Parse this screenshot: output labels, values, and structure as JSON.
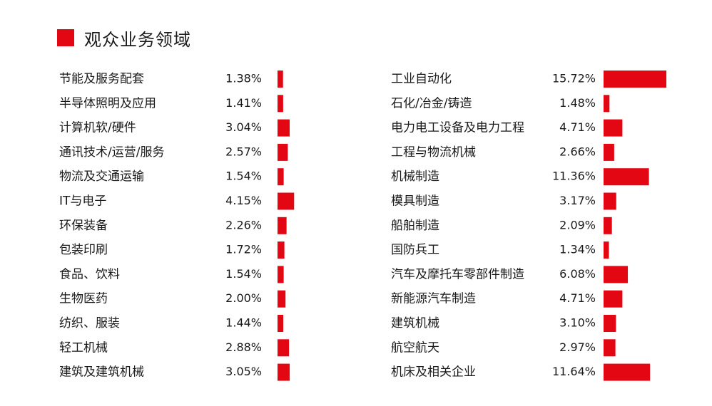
{
  "title": "观众业务领域",
  "colors": {
    "accent": "#e30613"
  },
  "chart_data": [
    {
      "type": "bar",
      "orientation": "horizontal",
      "categories": [
        "节能及服务配套",
        "半导体照明及应用",
        "计算机软/硬件",
        "通讯技术/运营/服务",
        "物流及交通运输",
        "IT与电子",
        "环保装备",
        "包装印刷",
        "食品、饮料",
        "生物医药",
        "纺织、服装",
        "轻工机械",
        "建筑及建筑机械"
      ],
      "values": [
        1.38,
        1.41,
        3.04,
        2.57,
        1.54,
        4.15,
        2.26,
        1.72,
        1.54,
        2.0,
        1.44,
        2.88,
        3.05
      ],
      "value_labels": [
        "1.38%",
        "1.41%",
        "3.04%",
        "2.57%",
        "1.54%",
        "4.15%",
        "2.26%",
        "1.72%",
        "1.54%",
        "2.00%",
        "1.44%",
        "2.88%",
        "3.05%"
      ],
      "unit": "%"
    },
    {
      "type": "bar",
      "orientation": "horizontal",
      "categories": [
        "工业自动化",
        "石化/冶金/铸造",
        "电力电工设备及电力工程",
        "工程与物流机械",
        "机械制造",
        "模具制造",
        "船舶制造",
        "国防兵工",
        "汽车及摩托车零部件制造",
        "新能源汽车制造",
        "建筑机械",
        "航空航天",
        "机床及相关企业"
      ],
      "values": [
        15.72,
        1.48,
        4.71,
        2.66,
        11.36,
        3.17,
        2.09,
        1.34,
        6.08,
        4.71,
        3.1,
        2.97,
        11.64
      ],
      "value_labels": [
        "15.72%",
        "1.48%",
        "4.71%",
        "2.66%",
        "11.36%",
        "3.17%",
        "2.09%",
        "1.34%",
        "6.08%",
        "4.71%",
        "3.10%",
        "2.97%",
        "11.64%"
      ],
      "unit": "%"
    }
  ]
}
